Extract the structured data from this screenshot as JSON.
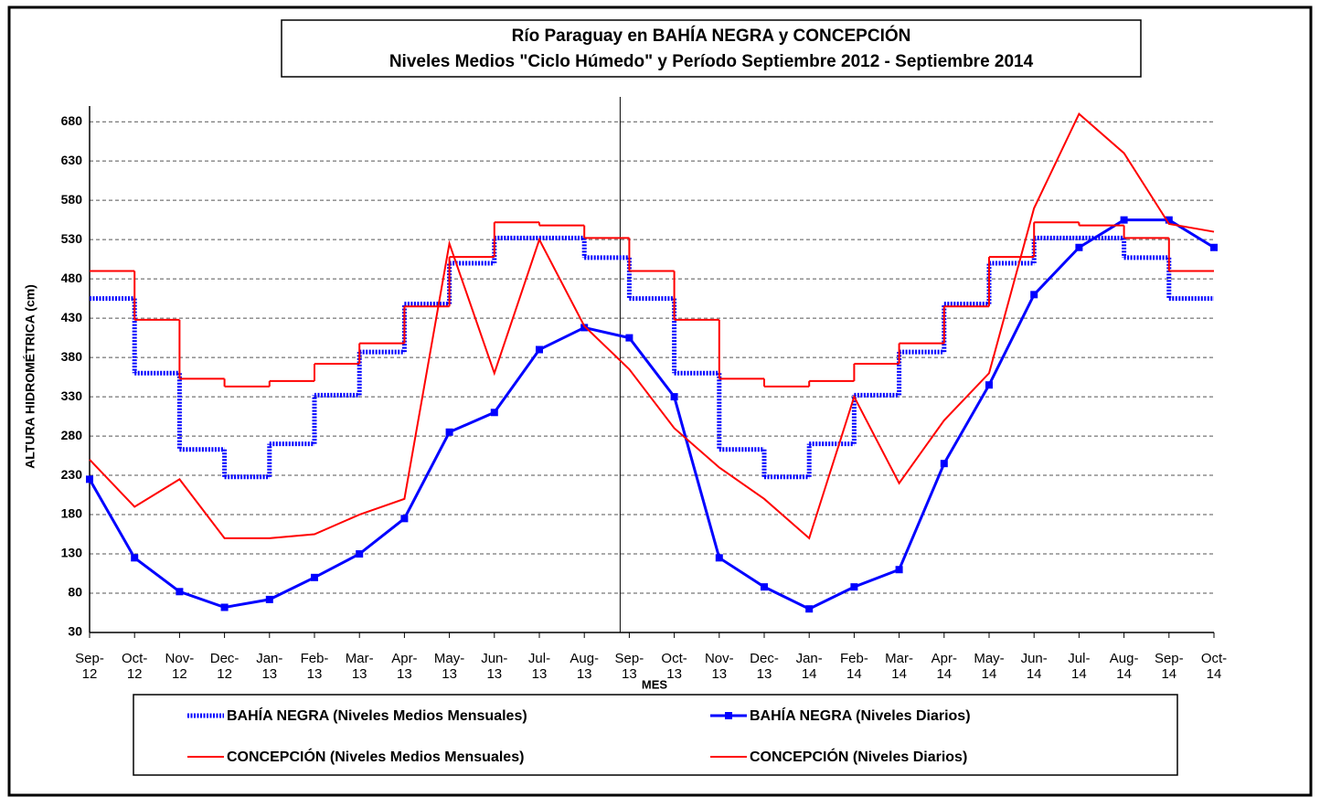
{
  "chart_data": {
    "type": "line",
    "title": "Río Paraguay en BAHÍA NEGRA y CONCEPCIÓN",
    "subtitle": "Niveles Medios \"Ciclo Húmedo\" y Período Septiembre 2012 - Septiembre 2014",
    "y_label": "ALTURA HIDROMÉTRICA (cm)",
    "x_label": "MES",
    "categories": [
      "Sep-\n12",
      "Oct-\n12",
      "Nov-\n12",
      "Dec-\n12",
      "Jan-\n13",
      "Feb-\n13",
      "Mar-\n13",
      "Apr-\n13",
      "May-\n13",
      "Jun-\n13",
      "Jul-\n13",
      "Aug-\n13",
      "Sep-\n13",
      "Oct-\n13",
      "Nov-\n13",
      "Dec-\n13",
      "Jan-\n14",
      "Feb-\n14",
      "Mar-\n14",
      "Apr-\n14",
      "May-\n14",
      "Jun-\n14",
      "Jul-\n14",
      "Aug-\n14",
      "Sep-\n14",
      "Oct-\n14"
    ],
    "ylim": [
      30,
      700
    ],
    "yticks": [
      30,
      80,
      130,
      180,
      230,
      280,
      330,
      380,
      430,
      480,
      530,
      580,
      630,
      680
    ],
    "grid": true,
    "series": [
      {
        "name": "BAHÍA NEGRA (Niveles Medios Mensuales)",
        "color": "#0000ff",
        "style": "step-dotted",
        "values": [
          455,
          360,
          263,
          228,
          270,
          332,
          387,
          448,
          500,
          532,
          532,
          507,
          455,
          360,
          263,
          228,
          270,
          332,
          387,
          448,
          500,
          532,
          532,
          507,
          455,
          null
        ]
      },
      {
        "name": "BAHÍA NEGRA (Niveles Diarios)",
        "color": "#0000ff",
        "style": "markers",
        "values": [
          225,
          125,
          82,
          62,
          72,
          100,
          130,
          175,
          285,
          310,
          390,
          418,
          405,
          330,
          125,
          88,
          60,
          88,
          110,
          245,
          345,
          460,
          520,
          555,
          555,
          520
        ]
      },
      {
        "name": "CONCEPCIÓN (Niveles Medios Mensuales)",
        "color": "#ff0000",
        "style": "step",
        "values": [
          490,
          428,
          353,
          343,
          350,
          372,
          398,
          445,
          508,
          552,
          548,
          532,
          490,
          428,
          353,
          343,
          350,
          372,
          398,
          445,
          508,
          552,
          548,
          532,
          490,
          null
        ]
      },
      {
        "name": "CONCEPCIÓN (Niveles Diarios)",
        "color": "#ff0000",
        "style": "line",
        "values": [
          250,
          190,
          225,
          150,
          150,
          155,
          180,
          200,
          525,
          360,
          530,
          420,
          365,
          290,
          240,
          200,
          150,
          330,
          220,
          300,
          360,
          570,
          690,
          640,
          550,
          540
        ]
      }
    ]
  }
}
